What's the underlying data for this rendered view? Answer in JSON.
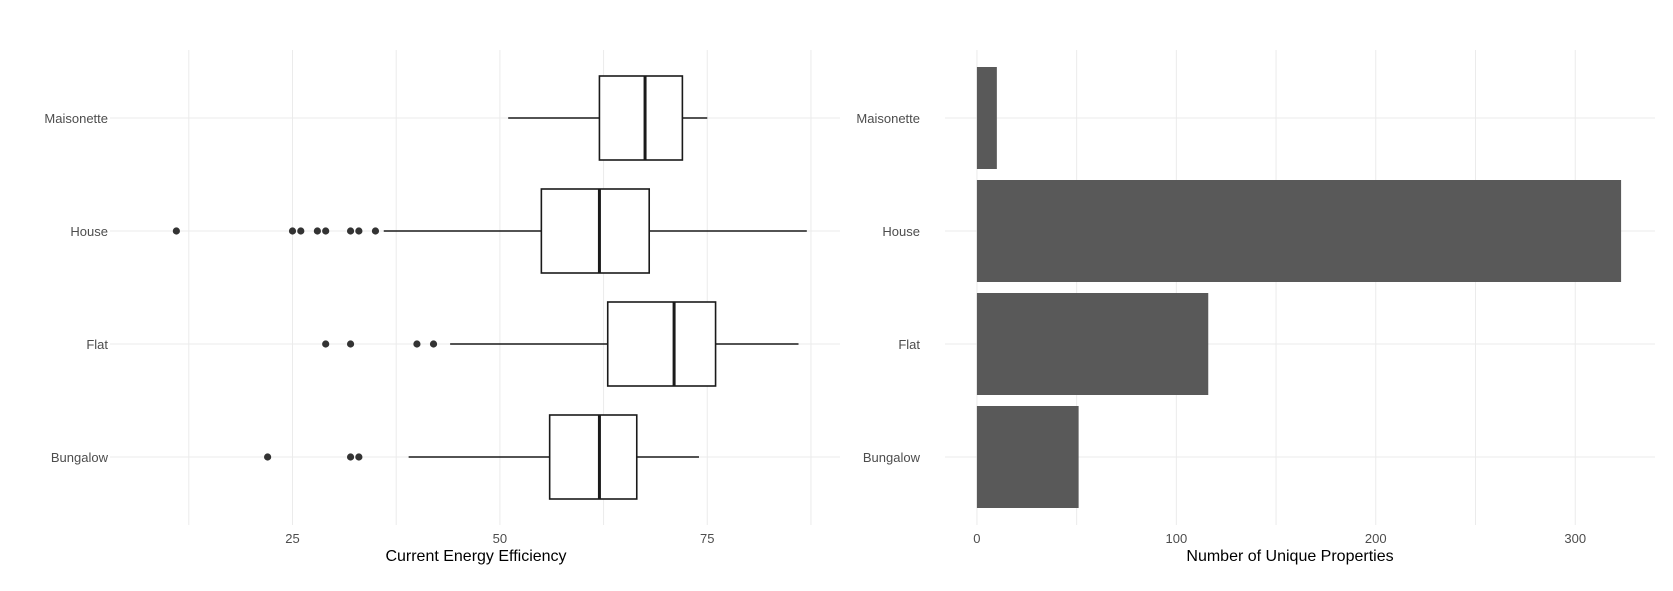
{
  "colors": {
    "background": "#ffffff",
    "grid": "#ebebeb",
    "box_stroke": "#1a1a1a",
    "bar_fill": "#595959",
    "outlier": "#333333"
  },
  "chart_data": [
    {
      "type": "boxplot",
      "orientation": "horizontal",
      "title": "",
      "xlabel": "Current Energy Efficiency",
      "ylabel": "",
      "xlim": [
        3,
        91
      ],
      "x_ticks": [
        25,
        50,
        75
      ],
      "grid": true,
      "categories": [
        "Bungalow",
        "Flat",
        "House",
        "Maisonette"
      ],
      "boxes": [
        {
          "category": "Bungalow",
          "whisker_low": 39,
          "q1": 56,
          "median": 62,
          "q3": 66.5,
          "whisker_high": 74,
          "outliers": [
            22,
            32,
            33
          ]
        },
        {
          "category": "Flat",
          "whisker_low": 44,
          "q1": 63,
          "median": 71,
          "q3": 76,
          "whisker_high": 86,
          "outliers": [
            29,
            32,
            40,
            42
          ]
        },
        {
          "category": "House",
          "whisker_low": 36,
          "q1": 55,
          "median": 62,
          "q3": 68,
          "whisker_high": 87,
          "outliers": [
            11,
            25,
            26,
            28,
            29,
            32,
            33,
            35
          ]
        },
        {
          "category": "Maisonette",
          "whisker_low": 51,
          "q1": 62,
          "median": 67.5,
          "q3": 72,
          "whisker_high": 75,
          "outliers": []
        }
      ]
    },
    {
      "type": "bar",
      "orientation": "horizontal",
      "title": "",
      "xlabel": "Number of Unique Properties",
      "ylabel": "",
      "xlim": [
        -16,
        340
      ],
      "x_ticks": [
        0,
        100,
        200,
        300
      ],
      "grid": true,
      "categories": [
        "Bungalow",
        "Flat",
        "House",
        "Maisonette"
      ],
      "values": [
        51,
        116,
        323,
        10
      ]
    }
  ]
}
